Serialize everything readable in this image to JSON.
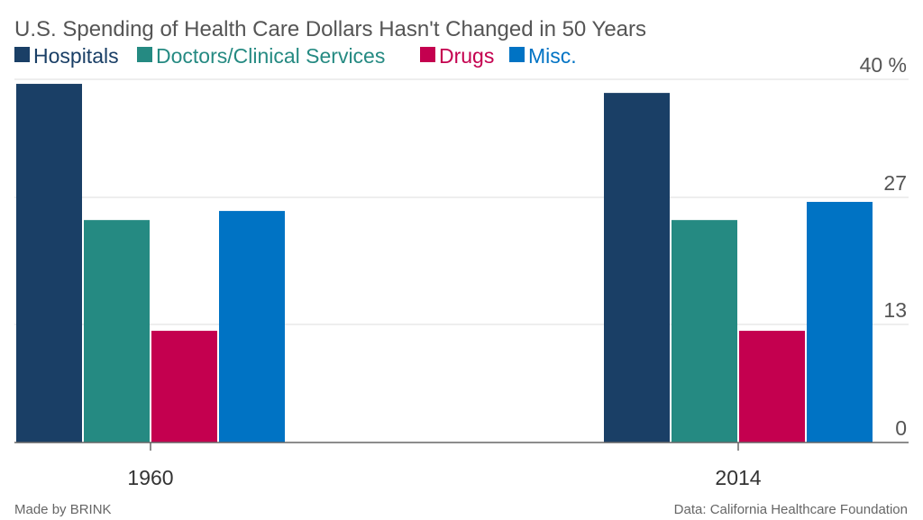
{
  "chart_data": {
    "type": "bar",
    "title": "U.S. Spending of Health Care Dollars Hasn't Changed in 50 Years",
    "categories": [
      "1960",
      "2014"
    ],
    "series": [
      {
        "name": "Hospitals",
        "color": "#1a3f66",
        "values": [
          39.5,
          38.5
        ]
      },
      {
        "name": "Doctors/Clinical Services",
        "color": "#258a82",
        "values": [
          24.5,
          24.5
        ]
      },
      {
        "name": "Drugs",
        "color": "#c4004f",
        "values": [
          12.3,
          12.3
        ]
      },
      {
        "name": "Misc.",
        "color": "#0073c4",
        "values": [
          25.5,
          26.5
        ]
      }
    ],
    "yaxis": {
      "min": 0,
      "max": 40,
      "ticks": [
        0,
        13,
        27,
        40
      ],
      "tick_labels": [
        "0",
        "13",
        "27",
        "40 %"
      ],
      "position": "right",
      "grid": true
    },
    "xlabel": "",
    "ylabel": ""
  },
  "footer": {
    "credit": "Made by BRINK",
    "source": "Data: California Healthcare Foundation"
  }
}
